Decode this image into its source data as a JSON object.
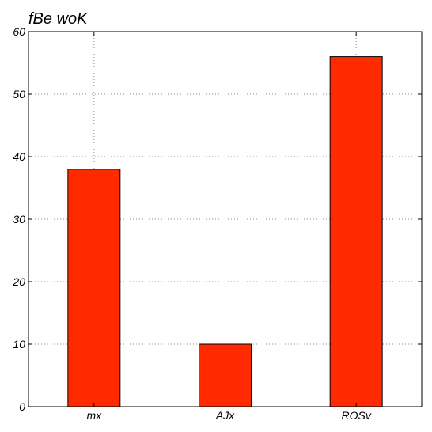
{
  "chart_data": {
    "type": "bar",
    "title": "fBe woK",
    "xlabel": "",
    "ylabel": "",
    "categories": [
      "mx",
      "AJx",
      "ROSv"
    ],
    "values": [
      38,
      10,
      56
    ],
    "ylim": [
      0,
      60
    ],
    "yticks": [
      0,
      10,
      20,
      30,
      40,
      50,
      60
    ],
    "grid": true,
    "bar_color": "#ff2a00"
  }
}
